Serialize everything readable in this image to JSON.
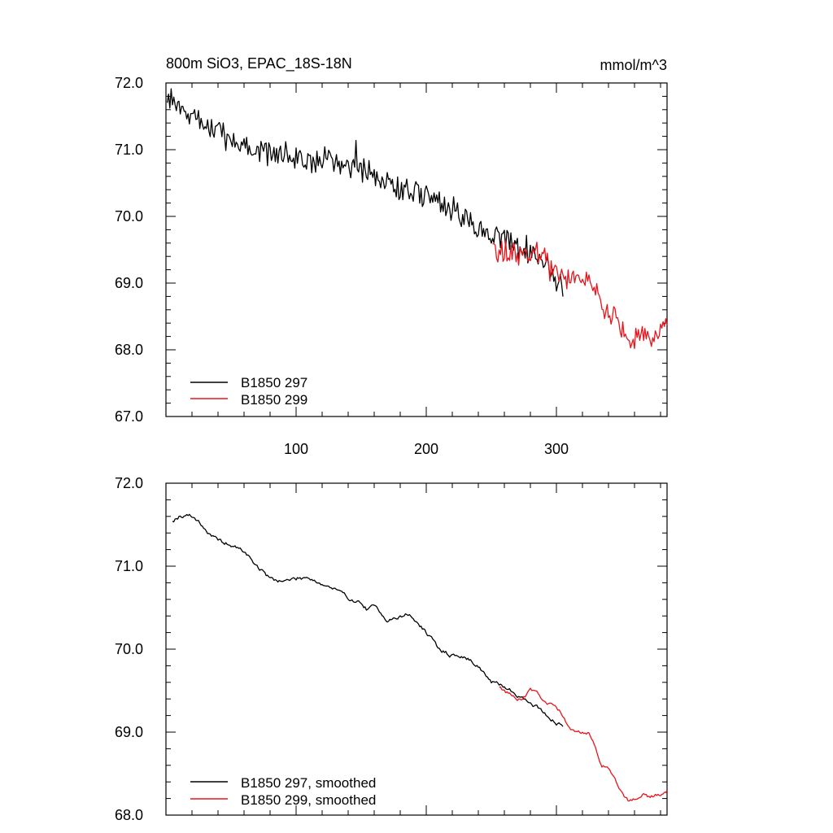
{
  "chart_data": [
    {
      "type": "line",
      "title": "800m SiO3, EPAC_18S-18N",
      "units": "mmol/m^3",
      "xlim": [
        0,
        385
      ],
      "ylim": [
        67.0,
        72.0
      ],
      "xticks": [
        100,
        200,
        300
      ],
      "xtick_labels": [
        "100",
        "200",
        "300"
      ],
      "yticks": [
        67.0,
        68.0,
        69.0,
        70.0,
        71.0,
        72.0
      ],
      "ytick_labels": [
        "67.0",
        "68.0",
        "69.0",
        "70.0",
        "71.0",
        "72.0"
      ],
      "legend_position": "bottom-left",
      "series": [
        {
          "name": "B1850 297",
          "color": "#000000",
          "x_range": [
            1,
            305
          ],
          "anchors": [
            [
              1,
              71.75
            ],
            [
              10,
              71.6
            ],
            [
              25,
              71.45
            ],
            [
              50,
              71.15
            ],
            [
              75,
              70.95
            ],
            [
              100,
              70.85
            ],
            [
              125,
              70.85
            ],
            [
              150,
              70.7
            ],
            [
              175,
              70.45
            ],
            [
              200,
              70.3
            ],
            [
              225,
              70.05
            ],
            [
              250,
              69.7
            ],
            [
              270,
              69.55
            ],
            [
              290,
              69.35
            ],
            [
              300,
              69.1
            ],
            [
              305,
              69.0
            ]
          ],
          "noise": 0.17
        },
        {
          "name": "B1850 299",
          "color": "#e8141b",
          "x_range": [
            251,
            385
          ],
          "anchors": [
            [
              251,
              69.65
            ],
            [
              255,
              69.45
            ],
            [
              270,
              69.45
            ],
            [
              280,
              69.45
            ],
            [
              290,
              69.4
            ],
            [
              300,
              69.2
            ],
            [
              310,
              69.05
            ],
            [
              320,
              69.05
            ],
            [
              330,
              69.0
            ],
            [
              335,
              68.6
            ],
            [
              340,
              68.55
            ],
            [
              350,
              68.3
            ],
            [
              360,
              68.2
            ],
            [
              370,
              68.2
            ],
            [
              380,
              68.3
            ],
            [
              385,
              68.4
            ]
          ],
          "noise": 0.17
        }
      ]
    },
    {
      "type": "line",
      "xlim": [
        0,
        385
      ],
      "ylim": [
        68.0,
        72.0
      ],
      "yticks": [
        68.0,
        69.0,
        70.0,
        71.0,
        72.0
      ],
      "ytick_labels": [
        "68.0",
        "69.0",
        "70.0",
        "71.0",
        "72.0"
      ],
      "legend_position": "bottom-left",
      "series": [
        {
          "name": "B1850 297, smoothed",
          "color": "#000000",
          "x_range": [
            5,
            305
          ],
          "anchors": [
            [
              5,
              71.55
            ],
            [
              10,
              71.6
            ],
            [
              17,
              71.62
            ],
            [
              25,
              71.55
            ],
            [
              35,
              71.35
            ],
            [
              50,
              71.25
            ],
            [
              60,
              71.18
            ],
            [
              70,
              71.0
            ],
            [
              80,
              70.85
            ],
            [
              90,
              70.82
            ],
            [
              100,
              70.85
            ],
            [
              110,
              70.87
            ],
            [
              120,
              70.78
            ],
            [
              130,
              70.72
            ],
            [
              140,
              70.62
            ],
            [
              150,
              70.55
            ],
            [
              155,
              70.47
            ],
            [
              160,
              70.52
            ],
            [
              165,
              70.45
            ],
            [
              170,
              70.35
            ],
            [
              180,
              70.38
            ],
            [
              185,
              70.43
            ],
            [
              190,
              70.37
            ],
            [
              200,
              70.2
            ],
            [
              210,
              70.0
            ],
            [
              220,
              69.92
            ],
            [
              230,
              69.9
            ],
            [
              240,
              69.8
            ],
            [
              250,
              69.6
            ],
            [
              260,
              69.55
            ],
            [
              270,
              69.45
            ],
            [
              280,
              69.35
            ],
            [
              290,
              69.25
            ],
            [
              300,
              69.1
            ],
            [
              305,
              69.07
            ]
          ],
          "noise": 0.02
        },
        {
          "name": "B1850 299, smoothed",
          "color": "#e8141b",
          "x_range": [
            256,
            385
          ],
          "anchors": [
            [
              256,
              69.55
            ],
            [
              262,
              69.48
            ],
            [
              270,
              69.38
            ],
            [
              275,
              69.42
            ],
            [
              280,
              69.5
            ],
            [
              285,
              69.45
            ],
            [
              290,
              69.35
            ],
            [
              300,
              69.3
            ],
            [
              305,
              69.2
            ],
            [
              310,
              69.05
            ],
            [
              315,
              69.0
            ],
            [
              320,
              69.0
            ],
            [
              325,
              68.98
            ],
            [
              330,
              68.8
            ],
            [
              335,
              68.6
            ],
            [
              340,
              68.55
            ],
            [
              345,
              68.45
            ],
            [
              350,
              68.3
            ],
            [
              355,
              68.18
            ],
            [
              360,
              68.2
            ],
            [
              365,
              68.25
            ],
            [
              370,
              68.23
            ],
            [
              375,
              68.22
            ],
            [
              380,
              68.25
            ],
            [
              383,
              68.3
            ]
          ],
          "noise": 0.02
        }
      ]
    }
  ]
}
